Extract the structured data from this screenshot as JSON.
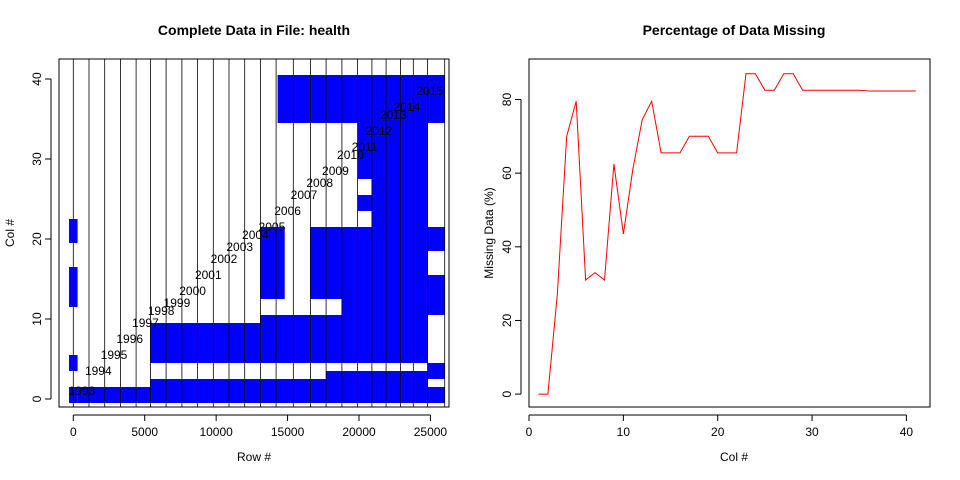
{
  "chart_data": [
    {
      "type": "table",
      "title": "Complete Data in File: health",
      "xlabel": "Row #",
      "ylabel": "Col #",
      "xlim": [
        -1000,
        26300
      ],
      "ylim": [
        -1,
        42.5
      ],
      "xticks": [
        0,
        5000,
        10000,
        15000,
        20000,
        25000
      ],
      "yticks": [
        0,
        10,
        20,
        30,
        40
      ],
      "fill_color": "#0000ff",
      "divider_color": "#000000",
      "year_boundaries": [
        0,
        1100,
        2200,
        3300,
        4400,
        5400,
        6500,
        7600,
        8700,
        9800,
        10900,
        12000,
        13100,
        14200,
        15400,
        16600,
        17700,
        18800,
        19900,
        20900,
        21900,
        22900,
        23800,
        24800,
        26000
      ],
      "year_labels": [
        {
          "label": "1993",
          "x": 600,
          "y": 1
        },
        {
          "label": "1994",
          "x": 1750,
          "y": 3.5
        },
        {
          "label": "1995",
          "x": 2850,
          "y": 5.5
        },
        {
          "label": "1996",
          "x": 3950,
          "y": 7.5
        },
        {
          "label": "1997",
          "x": 5050,
          "y": 9.5
        },
        {
          "label": "1998",
          "x": 6150,
          "y": 11
        },
        {
          "label": "1999",
          "x": 7250,
          "y": 12
        },
        {
          "label": "2000",
          "x": 8350,
          "y": 13.5
        },
        {
          "label": "2001",
          "x": 9450,
          "y": 15.5
        },
        {
          "label": "2002",
          "x": 10550,
          "y": 17.5
        },
        {
          "label": "2003",
          "x": 11650,
          "y": 19
        },
        {
          "label": "2004",
          "x": 12750,
          "y": 20.5
        },
        {
          "label": "2005",
          "x": 13900,
          "y": 21.5
        },
        {
          "label": "2006",
          "x": 15000,
          "y": 23.5
        },
        {
          "label": "2007",
          "x": 16150,
          "y": 25.5
        },
        {
          "label": "2008",
          "x": 17250,
          "y": 27
        },
        {
          "label": "2009",
          "x": 18350,
          "y": 28.5
        },
        {
          "label": "2010",
          "x": 19400,
          "y": 30.5
        },
        {
          "label": "2011",
          "x": 20400,
          "y": 31.5
        },
        {
          "label": "2012",
          "x": 21400,
          "y": 33.5
        },
        {
          "label": "2013",
          "x": 22400,
          "y": 35.5
        },
        {
          "label": "2014",
          "x": 23350,
          "y": 36.5
        },
        {
          "label": "2015",
          "x": 24950,
          "y": 38.5
        }
      ],
      "complete_blocks": [
        {
          "x0": -300,
          "x1": 300,
          "y0": 19.5,
          "y1": 22.5
        },
        {
          "x0": -300,
          "x1": 300,
          "y0": 11.5,
          "y1": 16.5
        },
        {
          "x0": -300,
          "x1": 300,
          "y0": 3.5,
          "y1": 5.5
        },
        {
          "x0": -300,
          "x1": 300,
          "y0": -0.5,
          "y1": 1.5
        },
        {
          "x0": 300,
          "x1": 5400,
          "y0": -0.5,
          "y1": 1.5
        },
        {
          "x0": 5400,
          "x1": 17700,
          "y0": -0.5,
          "y1": 2.5
        },
        {
          "x0": 17700,
          "x1": 24800,
          "y0": -0.5,
          "y1": 3.5
        },
        {
          "x0": 24800,
          "x1": 26000,
          "y0": -0.5,
          "y1": 1.5
        },
        {
          "x0": 24800,
          "x1": 26000,
          "y0": 2.5,
          "y1": 4.5
        },
        {
          "x0": 5400,
          "x1": 13100,
          "y0": 4.5,
          "y1": 9.5
        },
        {
          "x0": 13100,
          "x1": 18800,
          "y0": 4.5,
          "y1": 10.5
        },
        {
          "x0": 18800,
          "x1": 23800,
          "y0": 4.5,
          "y1": 12.5
        },
        {
          "x0": 13100,
          "x1": 14800,
          "y0": 12.5,
          "y1": 21.5
        },
        {
          "x0": 16600,
          "x1": 19900,
          "y0": 12.5,
          "y1": 21.5
        },
        {
          "x0": 19900,
          "x1": 20900,
          "y0": 11.5,
          "y1": 21.5
        },
        {
          "x0": 20900,
          "x1": 24800,
          "y0": 4.5,
          "y1": 34.5
        },
        {
          "x0": 24800,
          "x1": 26000,
          "y0": 10.5,
          "y1": 15.5
        },
        {
          "x0": 24800,
          "x1": 26000,
          "y0": 18.5,
          "y1": 21.5
        },
        {
          "x0": 19900,
          "x1": 20900,
          "y0": 23.5,
          "y1": 25.5
        },
        {
          "x0": 19900,
          "x1": 20900,
          "y0": 27.5,
          "y1": 34.5
        },
        {
          "x0": 14300,
          "x1": 26000,
          "y0": 34.5,
          "y1": 40.5
        }
      ]
    },
    {
      "type": "line",
      "title": "Percentage of Data Missing",
      "xlabel": "Col #",
      "ylabel": "Missing Data (%)",
      "xlim": [
        0,
        42.5
      ],
      "ylim": [
        -3.5,
        91
      ],
      "xticks": [
        0,
        10,
        20,
        30,
        40
      ],
      "yticks": [
        0,
        20,
        40,
        60,
        80
      ],
      "line_color": "#ff0000",
      "series": [
        {
          "x": [
            1,
            2,
            3,
            4,
            5,
            6,
            7,
            8,
            9,
            10,
            11,
            12,
            13,
            14,
            15,
            16,
            17,
            18,
            19,
            20,
            21,
            22,
            23,
            24,
            25,
            26,
            27,
            28,
            29,
            30,
            31,
            32,
            33,
            34,
            35,
            36,
            37,
            38,
            39,
            40,
            41
          ],
          "values": [
            0,
            0,
            27,
            70,
            79.5,
            31,
            33,
            31,
            62.5,
            43.5,
            61,
            74.5,
            79.5,
            65.5,
            65.5,
            65.5,
            70,
            70,
            70,
            65.5,
            65.5,
            65.5,
            87,
            87,
            82.5,
            82.5,
            87,
            87,
            82.5,
            82.5,
            82.5,
            82.5,
            82.5,
            82.5,
            82.5,
            82.3,
            82.3,
            82.3,
            82.3,
            82.3,
            82.3
          ]
        }
      ]
    }
  ]
}
